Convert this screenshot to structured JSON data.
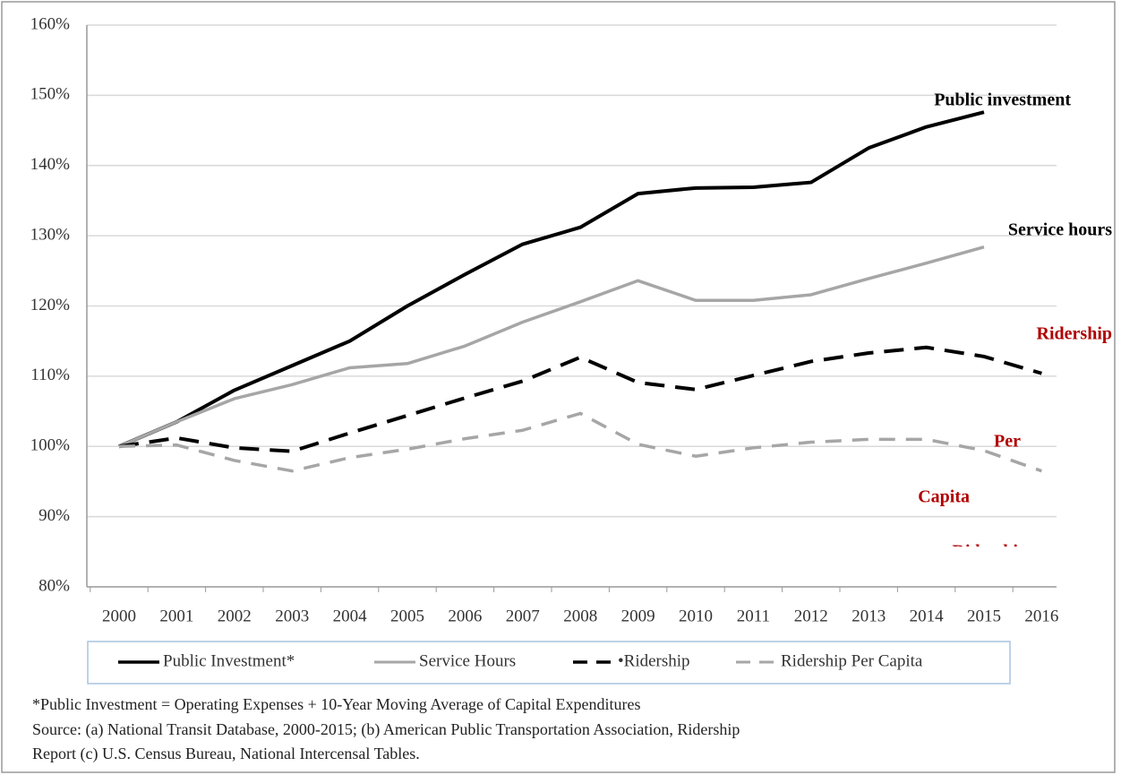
{
  "chart_data": {
    "type": "line",
    "categories": [
      "2000",
      "2001",
      "2002",
      "2003",
      "2004",
      "2005",
      "2006",
      "2007",
      "2008",
      "2009",
      "2010",
      "2011",
      "2012",
      "2013",
      "2014",
      "2015",
      "2016"
    ],
    "series": [
      {
        "name": "Public Investment*",
        "color": "#000000",
        "dash": false,
        "values": [
          100,
          103.5,
          108,
          111.5,
          115,
          120,
          124.5,
          128.8,
          131.2,
          136,
          136.8,
          136.9,
          137.6,
          142.5,
          145.5,
          147.6,
          null
        ]
      },
      {
        "name": "Service Hours",
        "color": "#a6a6a6",
        "dash": false,
        "values": [
          100,
          103.5,
          106.8,
          108.8,
          111.2,
          111.8,
          114.3,
          117.7,
          120.6,
          123.6,
          120.8,
          120.8,
          121.6,
          123.9,
          126.1,
          128.4,
          null
        ]
      },
      {
        "name": "•Ridership",
        "color": "#000000",
        "dash": true,
        "values": [
          100,
          101.2,
          99.8,
          99.3,
          101.9,
          104.4,
          106.9,
          109.3,
          112.7,
          109.1,
          108.1,
          110.1,
          112.1,
          113.3,
          114.1,
          112.8,
          110.4
        ]
      },
      {
        "name": "Ridership Per Capita",
        "color": "#a6a6a6",
        "dash": true,
        "values": [
          100,
          100.2,
          98,
          96.5,
          98.4,
          99.6,
          101.1,
          102.3,
          104.7,
          100.3,
          98.6,
          99.8,
          100.6,
          101,
          101,
          99.4,
          96.5
        ]
      }
    ],
    "ylim": [
      80,
      160
    ],
    "yticks": [
      {
        "value": 80,
        "label": "80%"
      },
      {
        "value": 90,
        "label": "90%"
      },
      {
        "value": 100,
        "label": "100%"
      },
      {
        "value": 110,
        "label": "110%"
      },
      {
        "value": 120,
        "label": "120%"
      },
      {
        "value": 130,
        "label": "130%"
      },
      {
        "value": 140,
        "label": "140%"
      },
      {
        "value": 150,
        "label": "150%"
      },
      {
        "value": 160,
        "label": "160%"
      }
    ],
    "grid": true,
    "legend": "bottom",
    "annotations": [
      "Public investment",
      "Service hours",
      "Ridership",
      "Per",
      "Capita",
      "Ridership"
    ],
    "notes": [
      "*Public Investment = Operating Expenses + 10-Year Moving Average of Capital Expenditures",
      "Source: (a) National Transit Database, 2000-2015; (b) American Public Transportation Association,  Ridership",
      "Report (c) U.S. Census Bureau, National Intercensal Tables."
    ]
  }
}
